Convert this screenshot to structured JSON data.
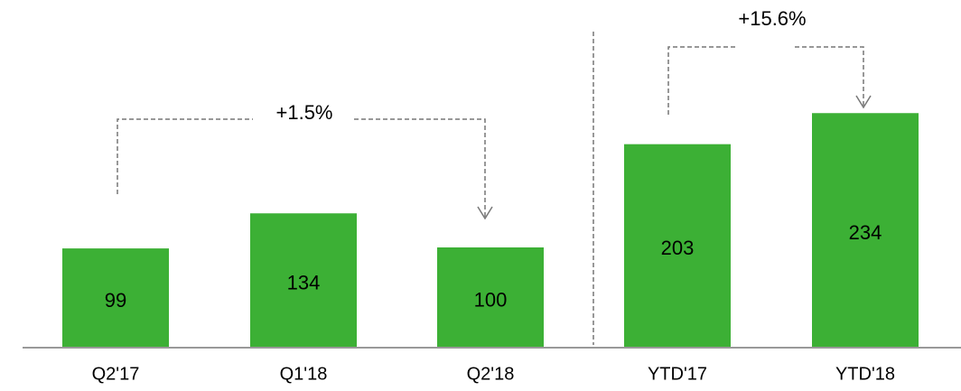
{
  "chart_data": {
    "type": "bar",
    "categories": [
      "Q2'17",
      "Q1'18",
      "Q2'18",
      "YTD'17",
      "YTD'18"
    ],
    "values": [
      99,
      134,
      100,
      203,
      234
    ],
    "color": "#3cb035",
    "annotations": [
      "+1.5%",
      "+15.6%"
    ]
  }
}
